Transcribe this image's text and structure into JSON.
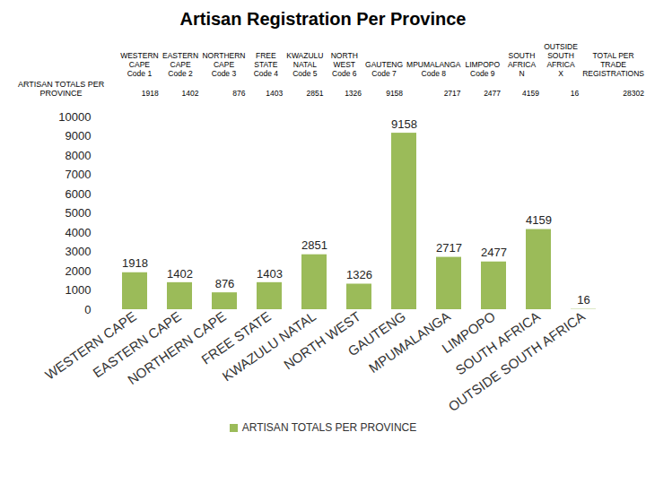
{
  "chart_data": {
    "type": "bar",
    "title": "Artisan Registration Per Province",
    "categories": [
      "WESTERN CAPE",
      "EASTERN CAPE",
      "NORTHERN CAPE",
      "FREE STATE",
      "KWAZULU NATAL",
      "NORTH WEST",
      "GAUTENG",
      "MPUMALANGA",
      "LIMPOPO",
      "SOUTH AFRICA",
      "OUTSIDE SOUTH AFRICA"
    ],
    "series": [
      {
        "name": "ARTISAN TOTALS PER PROVINCE",
        "color": "#9bbb59",
        "values": [
          1918,
          1402,
          876,
          1403,
          2851,
          1326,
          9158,
          2717,
          2477,
          4159,
          16
        ]
      }
    ],
    "ylim": [
      0,
      10000
    ],
    "yticks": [
      0,
      1000,
      2000,
      3000,
      4000,
      5000,
      6000,
      7000,
      8000,
      9000,
      10000
    ],
    "data_labels": true,
    "legend": "bottom",
    "table": {
      "row_label": "ARTISAN TOTALS PER PROVINCE",
      "columns": [
        {
          "name": "WESTERN CAPE",
          "code": "Code 1",
          "value": 1918
        },
        {
          "name": "EASTERN CAPE",
          "code": "Code 2",
          "value": 1402
        },
        {
          "name": "NORTHERN CAPE",
          "code": "Code 3",
          "value": 876
        },
        {
          "name": "FREE STATE",
          "code": "Code 4",
          "value": 1403
        },
        {
          "name": "KWAZULU NATAL",
          "code": "Code 5",
          "value": 2851
        },
        {
          "name": "NORTH WEST",
          "code": "Code 6",
          "value": 1326
        },
        {
          "name": "GAUTENG",
          "code": "Code 7",
          "value": 9158
        },
        {
          "name": "MPUMALANGA",
          "code": "Code 8",
          "value": 2717
        },
        {
          "name": "LIMPOPO",
          "code": "Code 9",
          "value": 2477
        },
        {
          "name": "SOUTH AFRICA",
          "code": "N",
          "value": 4159
        },
        {
          "name": "OUTSIDE SOUTH AFRICA",
          "code": "X",
          "value": 16
        },
        {
          "name": "TOTAL PER TRADE REGISTRATIONS",
          "value": 28302
        }
      ]
    }
  }
}
